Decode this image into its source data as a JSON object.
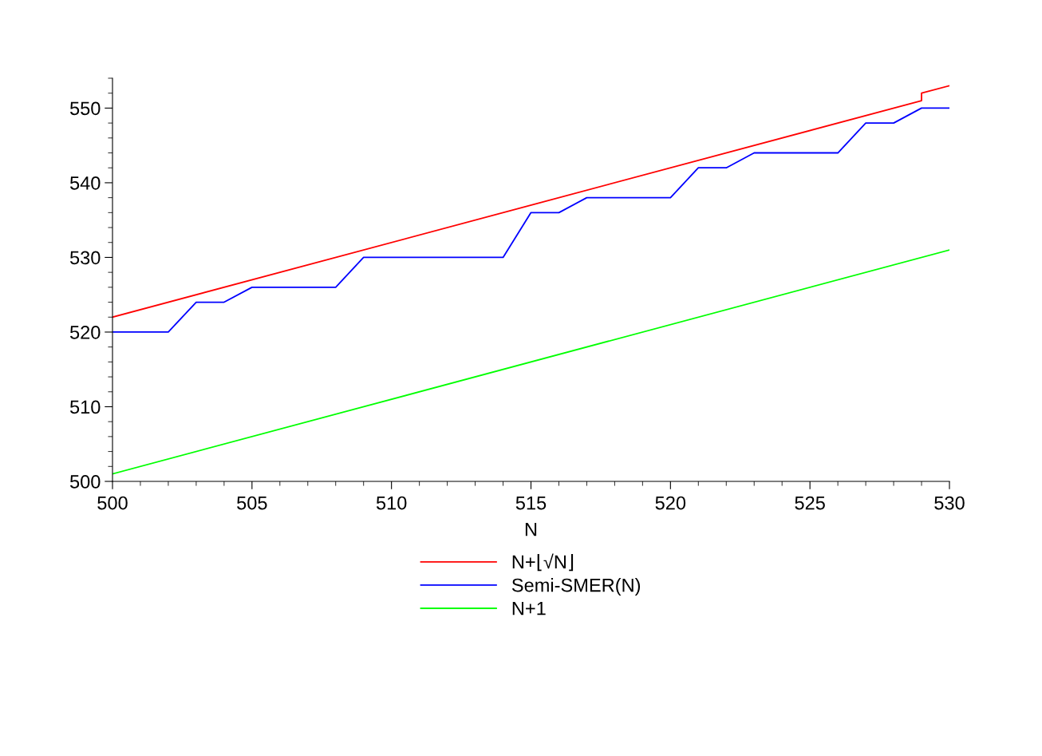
{
  "chart_data": {
    "type": "line",
    "xlabel": "N",
    "series": [
      {
        "name": "N+⌊√N⌋",
        "color": "#ff0000",
        "x": [
          500,
          529,
          529,
          530
        ],
        "values": [
          522,
          551,
          552,
          553
        ]
      },
      {
        "name": "Semi-SMER(N)",
        "color": "#0000ff",
        "x": [
          500,
          501,
          502,
          503,
          504,
          505,
          506,
          507,
          508,
          509,
          510,
          511,
          512,
          513,
          514,
          515,
          516,
          517,
          518,
          519,
          520,
          521,
          522,
          523,
          524,
          525,
          526,
          527,
          528,
          529,
          530
        ],
        "values": [
          520,
          520,
          520,
          524,
          524,
          526,
          526,
          526,
          526,
          530,
          530,
          530,
          530,
          530,
          530,
          536,
          536,
          538,
          538,
          538,
          538,
          542,
          542,
          544,
          544,
          544,
          544,
          548,
          548,
          550,
          550
        ]
      },
      {
        "name": "N+1",
        "color": "#00ff00",
        "x": [
          500,
          530
        ],
        "values": [
          501,
          531
        ]
      }
    ],
    "xlim": [
      500,
      530
    ],
    "ylim": [
      500,
      554
    ],
    "xticks": [
      500,
      {
        "value": 501,
        "label": null
      },
      {
        "value": 502,
        "label": null
      },
      {
        "value": 503,
        "label": null
      },
      {
        "value": 504,
        "label": null
      },
      505,
      {
        "value": 506,
        "label": null
      },
      {
        "value": 507,
        "label": null
      },
      {
        "value": 508,
        "label": null
      },
      {
        "value": 509,
        "label": null
      },
      510,
      {
        "value": 511,
        "label": null
      },
      {
        "value": 512,
        "label": null
      },
      {
        "value": 513,
        "label": null
      },
      {
        "value": 514,
        "label": null
      },
      515,
      {
        "value": 516,
        "label": null
      },
      {
        "value": 517,
        "label": null
      },
      {
        "value": 518,
        "label": null
      },
      {
        "value": 519,
        "label": null
      },
      520,
      {
        "value": 521,
        "label": null
      },
      {
        "value": 522,
        "label": null
      },
      {
        "value": 523,
        "label": null
      },
      {
        "value": 524,
        "label": null
      },
      525,
      {
        "value": 526,
        "label": null
      },
      {
        "value": 527,
        "label": null
      },
      {
        "value": 528,
        "label": null
      },
      {
        "value": 529,
        "label": null
      },
      530
    ],
    "yticks": [
      500,
      {
        "value": 502,
        "label": null
      },
      {
        "value": 504,
        "label": null
      },
      {
        "value": 506,
        "label": null
      },
      {
        "value": 508,
        "label": null
      },
      510,
      {
        "value": 512,
        "label": null
      },
      {
        "value": 514,
        "label": null
      },
      {
        "value": 516,
        "label": null
      },
      {
        "value": 518,
        "label": null
      },
      520,
      {
        "value": 522,
        "label": null
      },
      {
        "value": 524,
        "label": null
      },
      {
        "value": 526,
        "label": null
      },
      {
        "value": 528,
        "label": null
      },
      530,
      {
        "value": 532,
        "label": null
      },
      {
        "value": 534,
        "label": null
      },
      {
        "value": 536,
        "label": null
      },
      {
        "value": 538,
        "label": null
      },
      540,
      {
        "value": 542,
        "label": null
      },
      {
        "value": 544,
        "label": null
      },
      {
        "value": 546,
        "label": null
      },
      {
        "value": 548,
        "label": null
      },
      550,
      {
        "value": 552,
        "label": null
      },
      {
        "value": 554,
        "label": null
      }
    ],
    "grid": false,
    "legend": "bottom",
    "marker": "none",
    "line_style": "solid"
  }
}
